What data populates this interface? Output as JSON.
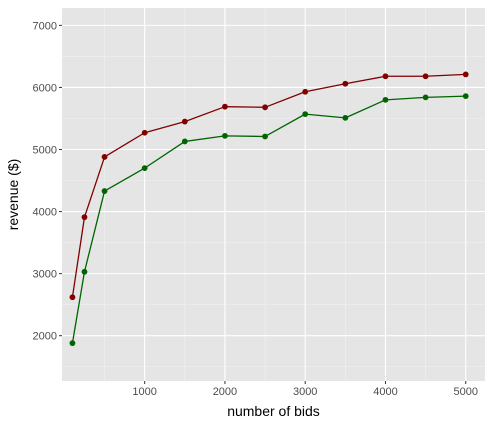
{
  "chart_data": {
    "type": "line",
    "title": "",
    "xlabel": "number of bids",
    "ylabel": "revenue ($)",
    "xlim": [
      -30,
      5240
    ],
    "ylim": [
      1270,
      7280
    ],
    "x_ticks": [
      1000,
      2000,
      3000,
      4000,
      5000
    ],
    "x_tick_labels": [
      "1000",
      "2000",
      "3000",
      "4000",
      "5000"
    ],
    "x_minor_ticks": [
      500,
      1500,
      2500,
      3500,
      4500
    ],
    "y_ticks": [
      2000,
      3000,
      4000,
      5000,
      6000,
      7000
    ],
    "y_tick_labels": [
      "2000",
      "3000",
      "4000",
      "5000",
      "6000",
      "7000"
    ],
    "y_minor_ticks": [
      1500,
      2500,
      3500,
      4500,
      5500,
      6500
    ],
    "grid": true,
    "legend": "none",
    "colors": {
      "panel": "#e5e5e5",
      "grid_major": "#ffffff",
      "grid_minor": "#f2f2f2",
      "series_top": "#800000",
      "series_bottom": "#006400"
    },
    "x": [
      100,
      250,
      500,
      1000,
      1500,
      2000,
      2500,
      3000,
      3500,
      4000,
      4500,
      5000
    ],
    "series": [
      {
        "color": "#800000",
        "values": [
          2620,
          3910,
          4880,
          5270,
          5450,
          5690,
          5680,
          5930,
          6060,
          6180,
          6180,
          6210
        ]
      },
      {
        "color": "#006400",
        "values": [
          1880,
          3030,
          4330,
          4700,
          5130,
          5220,
          5210,
          5570,
          5510,
          5800,
          5840,
          5860
        ]
      }
    ]
  }
}
